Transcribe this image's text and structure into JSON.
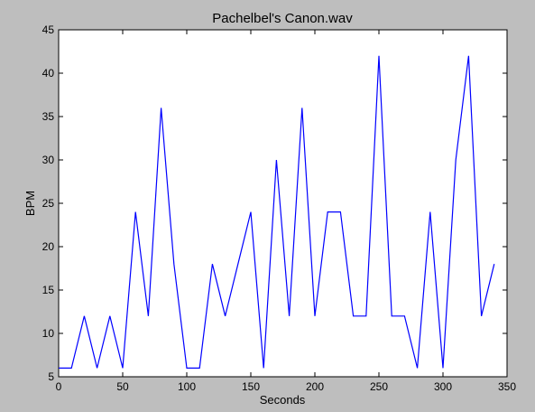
{
  "chart_data": {
    "type": "line",
    "title": "Pachelbel's Canon.wav",
    "xlabel": "Seconds",
    "ylabel": "BPM",
    "xlim": [
      0,
      350
    ],
    "ylim": [
      5,
      45
    ],
    "xticks": [
      0,
      50,
      100,
      150,
      200,
      250,
      300,
      350
    ],
    "yticks": [
      5,
      10,
      15,
      20,
      25,
      30,
      35,
      40,
      45
    ],
    "grid": false,
    "line_color": "#0000ff",
    "series": [
      {
        "x": [
          0,
          10,
          20,
          30,
          40,
          50,
          60,
          70,
          80,
          90,
          100,
          110,
          120,
          130,
          140,
          150,
          160,
          170,
          180,
          190,
          200,
          210,
          220,
          230,
          240,
          250,
          260,
          270,
          280,
          290,
          300,
          310,
          320,
          330,
          340
        ],
        "y": [
          6,
          6,
          12,
          6,
          12,
          6,
          24,
          12,
          36,
          18,
          6,
          6,
          18,
          12,
          18,
          24,
          6,
          30,
          12,
          36,
          12,
          24,
          24,
          12,
          12,
          42,
          12,
          12,
          6,
          24,
          6,
          30,
          42,
          12,
          18
        ]
      }
    ]
  }
}
